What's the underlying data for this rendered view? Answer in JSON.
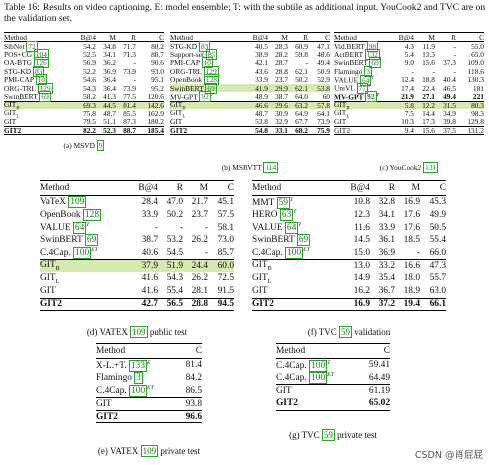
{
  "caption": {
    "label": "Table 16:",
    "text": "Results on video captioning. E: model ensemble; T: with the subtile as additional input. YouCook2 and TVC are on the validation set."
  },
  "msvd": {
    "headers": [
      "Method",
      "B@4",
      "M",
      "R",
      "C"
    ],
    "rows": [
      {
        "name": "SibNet",
        "ref": "72",
        "vals": [
          "54.2",
          "34.8",
          "71.7",
          "88.2"
        ]
      },
      {
        "name": "POS+CG",
        "ref": "104",
        "vals": [
          "52.5",
          "34.1",
          "71.3",
          "88.7"
        ]
      },
      {
        "name": "OA-BTG",
        "ref": "126",
        "vals": [
          "56.9",
          "36.2",
          "-",
          "90.6"
        ]
      },
      {
        "name": "STG-KD",
        "ref": "83",
        "vals": [
          "52.2",
          "36.9",
          "73.9",
          "93.0"
        ]
      },
      {
        "name": "PMI-CAP",
        "ref": "10",
        "vals": [
          "54.6",
          "36.4",
          "-",
          "95.1"
        ]
      },
      {
        "name": "ORG-TRL",
        "ref": "129",
        "vals": [
          "54.3",
          "36.4",
          "73.9",
          "95.2"
        ]
      },
      {
        "name": "SwinBERT",
        "ref": "69",
        "vals": [
          "58.2",
          "41.3",
          "77.5",
          "120.6"
        ]
      },
      {
        "name": "GIT",
        "sub": "B",
        "vals": [
          "69.3",
          "44.5",
          "81.4",
          "142.6"
        ],
        "shade": true,
        "sep": true
      },
      {
        "name": "GIT",
        "sub": "L",
        "vals": [
          "75.8",
          "48.7",
          "85.5",
          "162.9"
        ]
      },
      {
        "name": "GIT",
        "vals": [
          "79.5",
          "51.1",
          "87.3",
          "180.2"
        ]
      },
      {
        "name": "GIT2",
        "vals": [
          "82.2",
          "52.3",
          "88.7",
          "185.4"
        ],
        "bold": true,
        "sep": true
      }
    ],
    "caption": "(a) MSVD",
    "caption_ref": "9"
  },
  "msrvtt": {
    "headers": [
      "Method",
      "B@4",
      "M",
      "R",
      "C"
    ],
    "rows": [
      {
        "name": "STG-KD",
        "ref": "83",
        "vals": [
          "40.5",
          "28.3",
          "60.9",
          "47.1"
        ]
      },
      {
        "name": "Support-set",
        "ref": "85",
        "vals": [
          "38.9",
          "28.2",
          "59.8",
          "48.6"
        ]
      },
      {
        "name": "PMI-CAP",
        "ref": "10",
        "vals": [
          "42.1",
          "28.7",
          "-",
          "49.4"
        ]
      },
      {
        "name": "ORG-TRL",
        "ref": "129",
        "vals": [
          "43.6",
          "28.8",
          "62.1",
          "50.9"
        ]
      },
      {
        "name": "OpenBook",
        "ref": "128",
        "vals": [
          "33.9",
          "23.7",
          "50.2",
          "52.9"
        ]
      },
      {
        "name": "SwinBERT",
        "ref": "69",
        "vals": [
          "41.9",
          "29.9",
          "62.1",
          "53.8"
        ],
        "shade": true
      },
      {
        "name": "MV-GPT",
        "ref": "92",
        "sup": "T",
        "vals": [
          "48.9",
          "38.7",
          "64.0",
          "60"
        ]
      },
      {
        "name": "GIT",
        "sub": "B",
        "vals": [
          "46.6",
          "29.6",
          "63.2",
          "57.8"
        ],
        "shade": true,
        "sep": true
      },
      {
        "name": "GIT",
        "sub": "L",
        "vals": [
          "48.7",
          "30.9",
          "64.9",
          "64.1"
        ]
      },
      {
        "name": "GIT",
        "vals": [
          "53.8",
          "32.9",
          "67.7",
          "73.9"
        ]
      },
      {
        "name": "GIT2",
        "vals": [
          "54.8",
          "33.1",
          "68.2",
          "75.9"
        ],
        "bold": true,
        "sep": true
      }
    ],
    "caption": "(b) MSRVTT",
    "caption_ref": "114"
  },
  "youcook": {
    "headers": [
      "Method",
      "B@4",
      "M",
      "R",
      "C"
    ],
    "rows": [
      {
        "name": "Vid.BERT",
        "ref": "98",
        "vals": [
          "4.3",
          "11.9",
          "-",
          "55.0"
        ]
      },
      {
        "name": "ActBERT",
        "ref": "132",
        "vals": [
          "5.4",
          "13.3",
          "-",
          "65.0"
        ]
      },
      {
        "name": "SwinBERT",
        "ref": "69",
        "vals": [
          "9.0",
          "15.6",
          "37.3",
          "109.0"
        ]
      },
      {
        "name": "Flamingo",
        "ref": "3",
        "vals": [
          "-",
          "-",
          "-",
          "118.6"
        ]
      },
      {
        "name": "VALUE",
        "ref": "64",
        "sup": "T",
        "vals": [
          "12.4",
          "18.8",
          "40.4",
          "130.3"
        ]
      },
      {
        "name": "UniVL",
        "ref": "77",
        "sup": "T",
        "vals": [
          "17.4",
          "22.4",
          "46.5",
          "181"
        ]
      },
      {
        "name": "MV-GPT",
        "ref": "92",
        "sup": "T",
        "vals": [
          "21.9",
          "27.1",
          "49.4",
          "221"
        ],
        "bold": true
      },
      {
        "name": "GIT",
        "sub": "B",
        "vals": [
          "5.8",
          "12.2",
          "31.5",
          "80.3"
        ],
        "shade": true,
        "sep": true
      },
      {
        "name": "GIT",
        "sub": "L",
        "vals": [
          "7.5",
          "14.4",
          "34.9",
          "98.3"
        ]
      },
      {
        "name": "GIT",
        "vals": [
          "10.3",
          "17.3",
          "39.8",
          "129.8"
        ]
      },
      {
        "name": "GIT2",
        "vals": [
          "9.4",
          "15.6",
          "37.5",
          "131.2"
        ],
        "sep": true
      }
    ],
    "caption": "(c) YouCook2",
    "caption_ref": "131"
  },
  "vatex": {
    "headers": [
      "Method",
      "B@4",
      "R",
      "M",
      "C"
    ],
    "rows": [
      {
        "name": "VaTeX",
        "ref": "109",
        "vals": [
          "28.4",
          "47.0",
          "21.7",
          "45.1"
        ]
      },
      {
        "name": "OpenBook",
        "ref": "128",
        "vals": [
          "33.9",
          "50.2",
          "23.7",
          "57.5"
        ]
      },
      {
        "name": "VALUE",
        "ref": "64",
        "sup": "T",
        "vals": [
          "-",
          "-",
          "-",
          "58.1"
        ]
      },
      {
        "name": "SwinBERT",
        "ref": "69",
        "vals": [
          "38.7",
          "53.2",
          "26.2",
          "73.0"
        ]
      },
      {
        "name": "C.4Cap.",
        "ref": "100",
        "sup": "ET",
        "vals": [
          "40.6",
          "54.5",
          "-",
          "85.7"
        ]
      },
      {
        "name": "GIT",
        "sub": "B",
        "vals": [
          "37.9",
          "51.9",
          "24.4",
          "60.0"
        ],
        "shade": true,
        "sep": true
      },
      {
        "name": "GIT",
        "sub": "L",
        "vals": [
          "41.6",
          "54.3",
          "26.2",
          "72.5"
        ]
      },
      {
        "name": "GIT",
        "vals": [
          "41.6",
          "55.4",
          "28.1",
          "91.5"
        ]
      },
      {
        "name": "GIT2",
        "vals": [
          "42.7",
          "56.5",
          "28.8",
          "94.5"
        ],
        "bold": true,
        "sep": true
      }
    ],
    "caption": "(d) VATEX",
    "caption_ref": "109",
    "caption_suffix": "public test"
  },
  "tvc_val": {
    "headers": [
      "Method",
      "B@4",
      "R",
      "M",
      "C"
    ],
    "rows": [
      {
        "name": "MMT",
        "ref": "59",
        "sup": "T",
        "vals": [
          "10.8",
          "32.8",
          "16.9",
          "45.3"
        ]
      },
      {
        "name": "HERO",
        "ref": "63",
        "sup": "T",
        "vals": [
          "12.3",
          "34.1",
          "17.6",
          "49.9"
        ]
      },
      {
        "name": "VALUE",
        "ref": "64",
        "sup": "T",
        "vals": [
          "11.6",
          "33.9",
          "17.6",
          "50.5"
        ]
      },
      {
        "name": "SwinBERT",
        "ref": "69",
        "vals": [
          "14.5",
          "36.1",
          "18.5",
          "55.4"
        ]
      },
      {
        "name": "C.4Cap.",
        "ref": "100",
        "sup": "ET",
        "vals": [
          "15.0",
          "36.9",
          "-",
          "66.0"
        ]
      },
      {
        "name": "GIT",
        "sub": "B",
        "vals": [
          "13.0",
          "33.2",
          "16.6",
          "47.3"
        ],
        "sep": true
      },
      {
        "name": "GIT",
        "sub": "L",
        "vals": [
          "14.9",
          "35.4",
          "18.0",
          "55.7"
        ]
      },
      {
        "name": "GIT",
        "vals": [
          "16.2",
          "36.7",
          "18.9",
          "63.0"
        ]
      },
      {
        "name": "GIT2",
        "vals": [
          "16.9",
          "37.2",
          "19.4",
          "66.1"
        ],
        "bold": true,
        "sep": true
      }
    ],
    "caption": "(f) TVC",
    "caption_ref": "59",
    "caption_suffix": "validation"
  },
  "vatex_priv": {
    "headers": [
      "Method",
      "C"
    ],
    "rows": [
      {
        "name": "X-L.+T.",
        "ref": "133",
        "sup": "E",
        "vals": [
          "81.4"
        ]
      },
      {
        "name": "Flamingo",
        "ref": "3",
        "vals": [
          "84.2"
        ]
      },
      {
        "name": "C.4Cap.",
        "ref": "100",
        "sup": "ET",
        "vals": [
          "86.5"
        ]
      },
      {
        "name": "GIT",
        "vals": [
          "93.8"
        ],
        "sep": true
      },
      {
        "name": "GIT2",
        "vals": [
          "96.6"
        ],
        "bold": true,
        "sep": true
      }
    ],
    "caption": "(e) VATEX",
    "caption_ref": "109",
    "caption_suffix": "private test"
  },
  "tvc_priv": {
    "headers": [
      "Method",
      "C"
    ],
    "rows": [
      {
        "name": "C.4Cap.",
        "ref": "100",
        "sup": "T",
        "vals": [
          "59.41"
        ]
      },
      {
        "name": "C.4Cap.",
        "ref": "100",
        "sup": "ET",
        "vals": [
          "64.49"
        ]
      },
      {
        "name": "GIT",
        "vals": [
          "61.19"
        ],
        "sep": true
      },
      {
        "name": "GIT2",
        "vals": [
          "65.02"
        ],
        "bold": true
      }
    ],
    "caption": "(g) TVC",
    "caption_ref": "59",
    "caption_suffix": "private test"
  },
  "watermark": "CSDN @肖屁屁"
}
